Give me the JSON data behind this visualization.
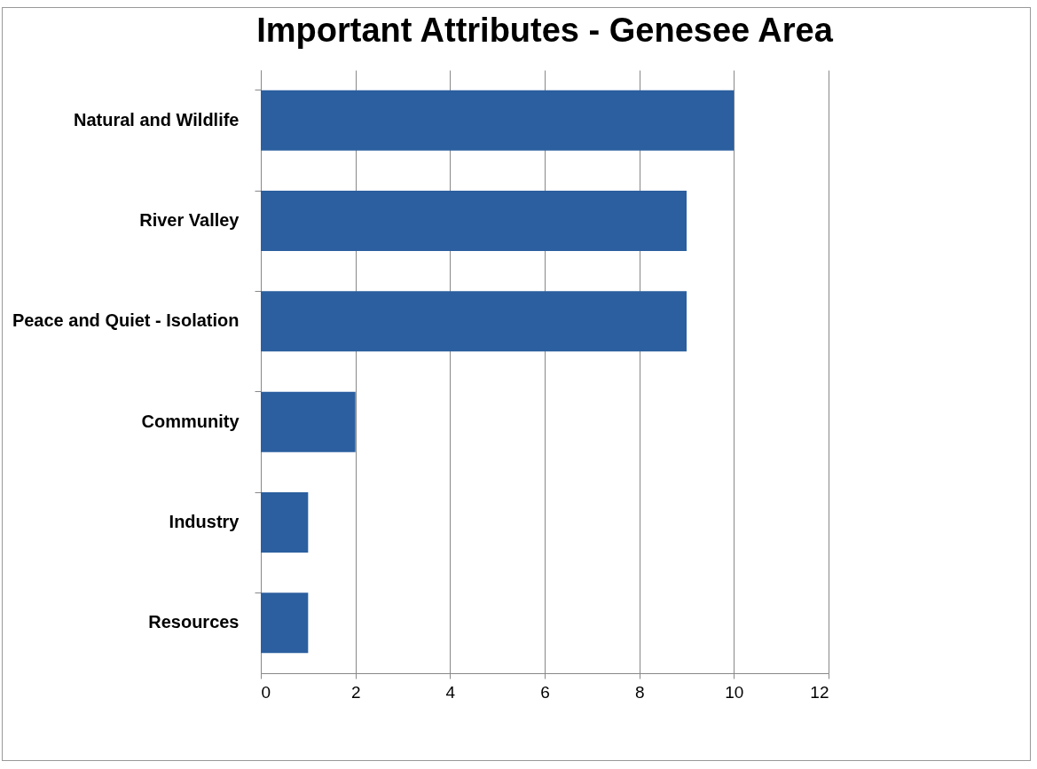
{
  "chart_data": {
    "type": "bar",
    "title": "Important Attributes - Genesee Area",
    "orientation": "horizontal",
    "categories": [
      "Natural  and Wildlife",
      "River Valley",
      "Peace and Quiet - Isolation",
      "Community",
      "Industry",
      "Resources"
    ],
    "values": [
      10,
      9,
      9,
      2,
      1,
      1
    ],
    "color": "#2b5f9f",
    "xlim": [
      0,
      12
    ],
    "xticks": [
      0,
      2,
      4,
      6,
      8,
      10,
      12
    ],
    "grid": "x"
  }
}
